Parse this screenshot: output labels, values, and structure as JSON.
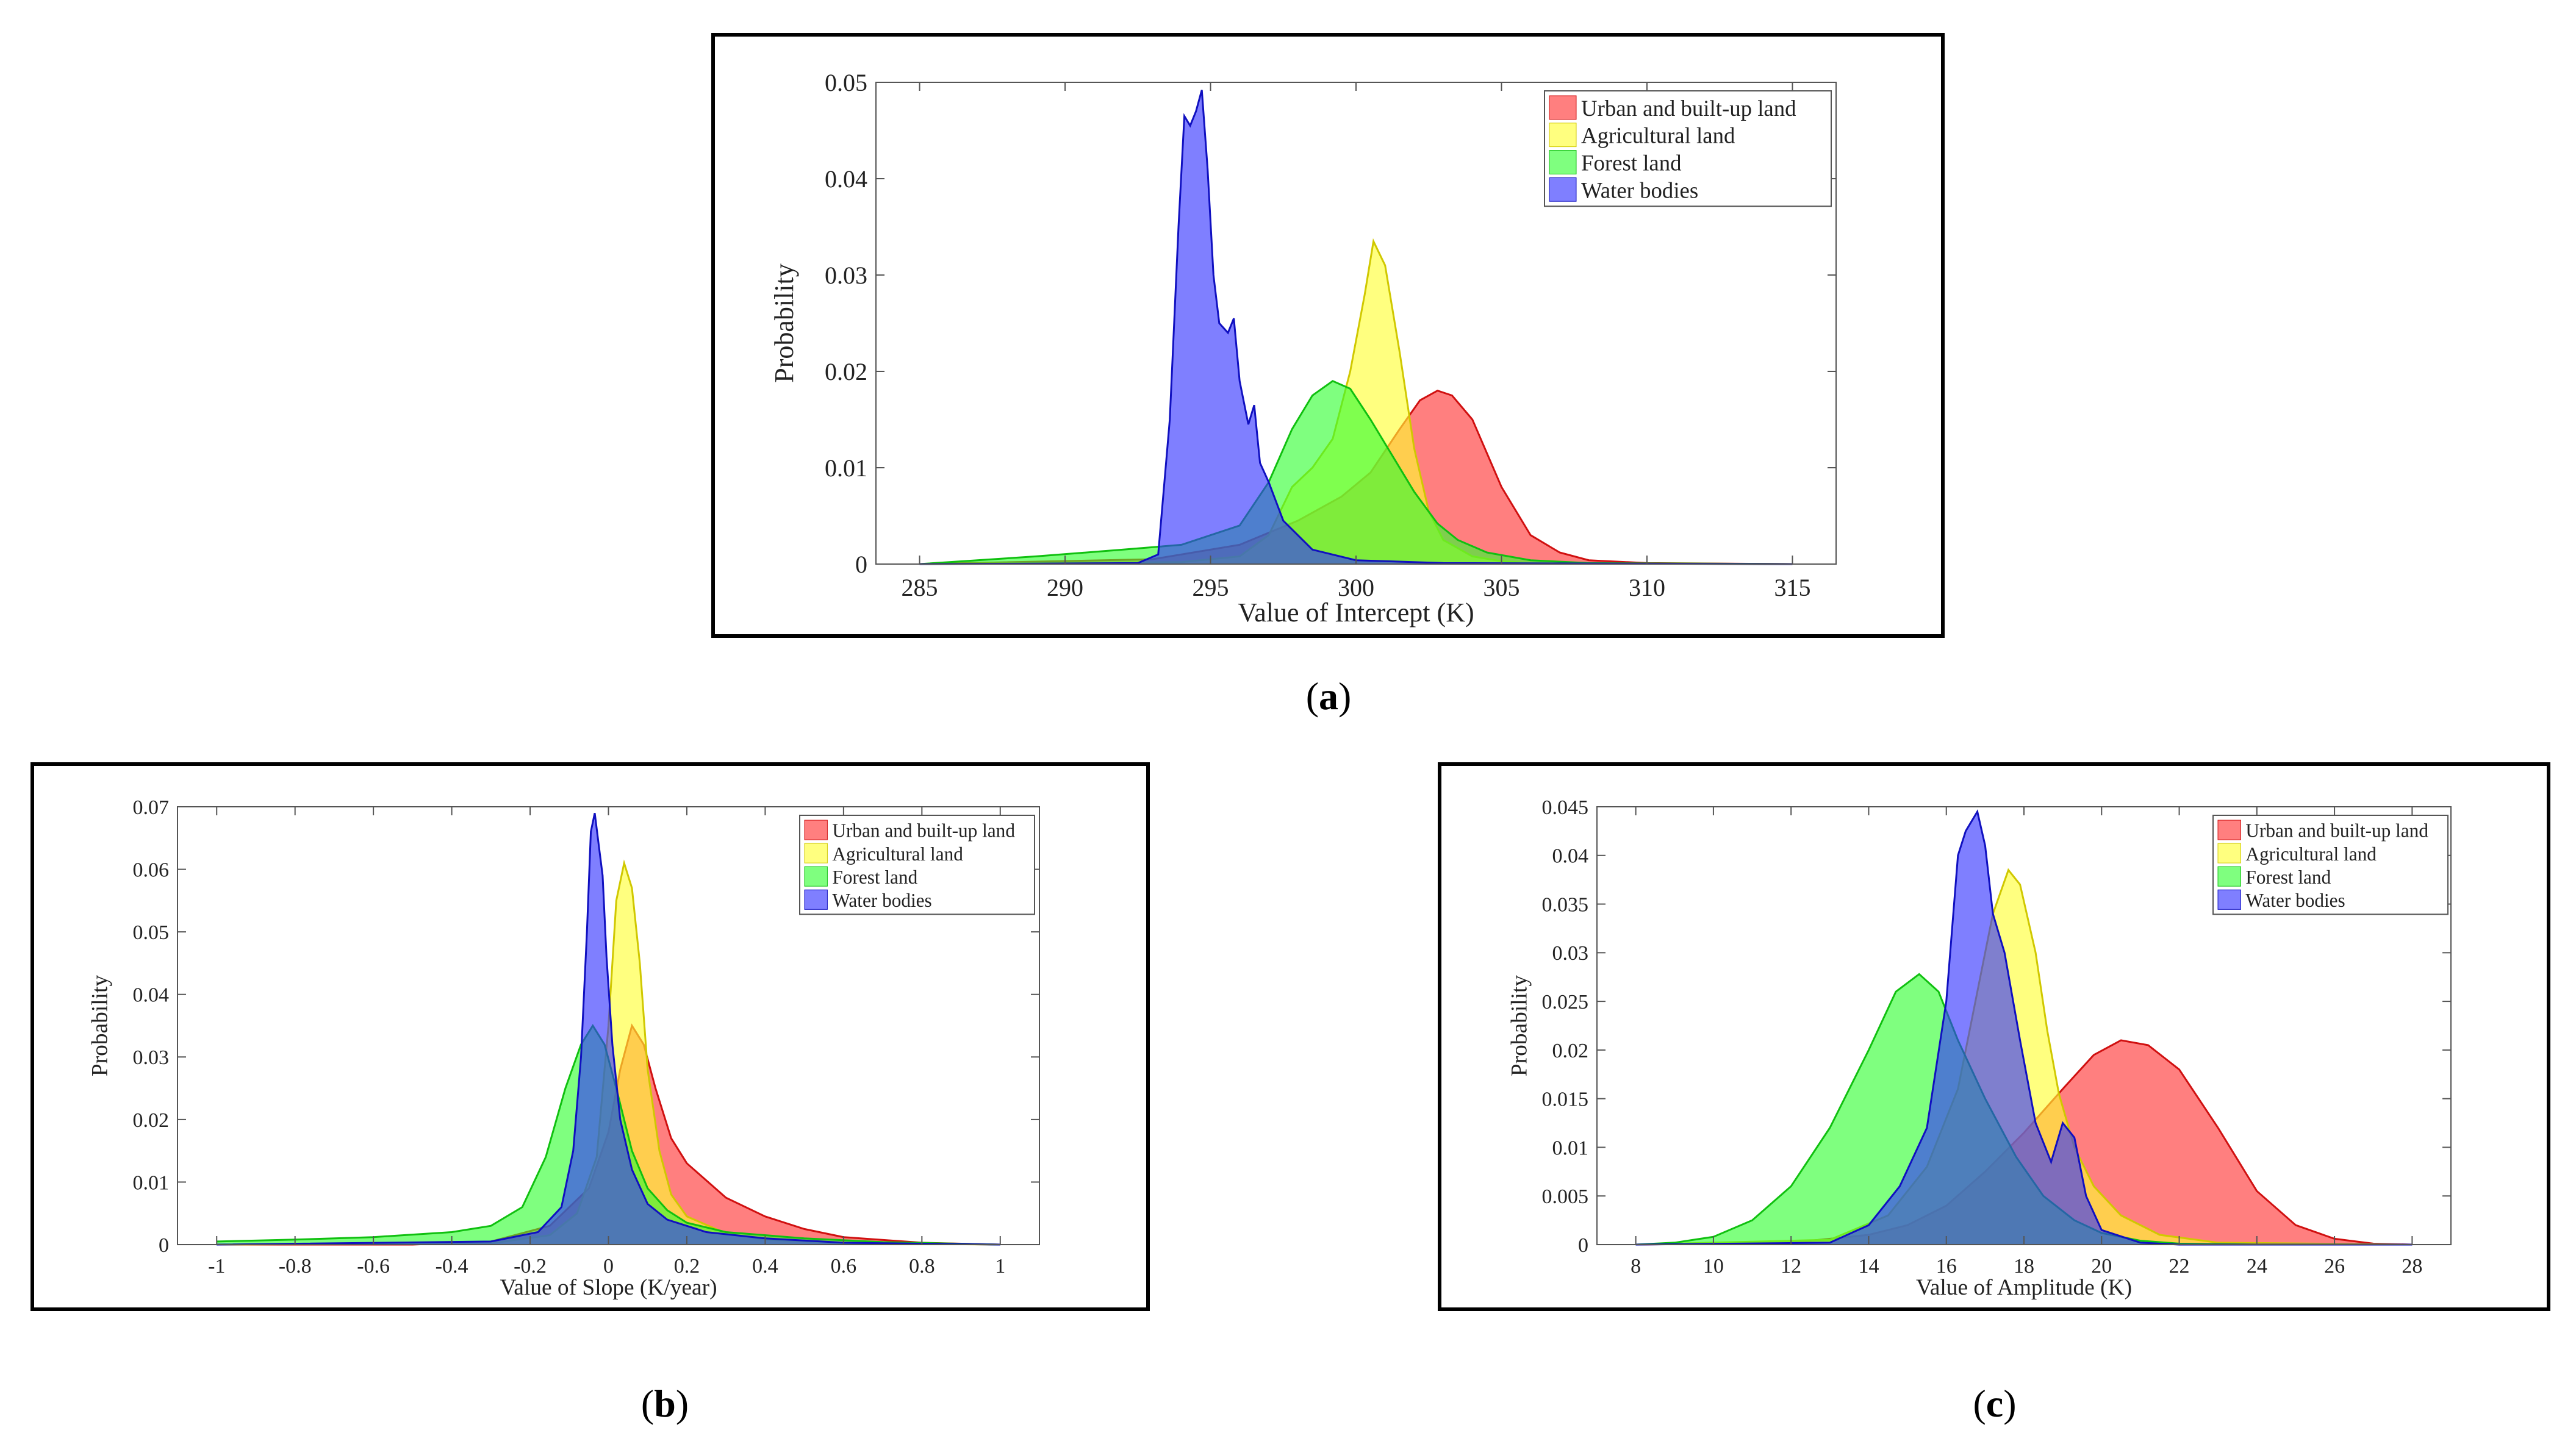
{
  "chart_data": [
    {
      "id": "a",
      "type": "area",
      "caption": "a",
      "xlabel": "Value of Intercept (K)",
      "ylabel": "Probability",
      "xlim": [
        283.5,
        316.5
      ],
      "ylim": [
        0,
        0.05
      ],
      "xticks": [
        285,
        290,
        295,
        300,
        305,
        310,
        315
      ],
      "yticks": [
        0,
        0.01,
        0.02,
        0.03,
        0.04,
        0.05
      ],
      "xtick_labels": [
        "285",
        "290",
        "295",
        "300",
        "305",
        "310",
        "315"
      ],
      "ytick_labels": [
        "0",
        "0.01",
        "0.02",
        "0.03",
        "0.04",
        "0.05"
      ],
      "legend": [
        "Urban and built-up land",
        "Agricultural land",
        "Forest land",
        "Water bodies"
      ],
      "series": [
        {
          "name": "Urban and built-up land",
          "color": "#ff3030",
          "stroke": "#d01010",
          "x": [
            285,
            293,
            296,
            298,
            299.5,
            300.5,
            301.5,
            302.2,
            302.8,
            303.3,
            304,
            305,
            306,
            307,
            308,
            310,
            315
          ],
          "y": [
            0,
            0.0005,
            0.002,
            0.0045,
            0.007,
            0.0095,
            0.014,
            0.017,
            0.018,
            0.0175,
            0.015,
            0.008,
            0.003,
            0.0012,
            0.0004,
            0.0001,
            0
          ]
        },
        {
          "name": "Agricultural land",
          "color": "#ffff30",
          "stroke": "#d0c800",
          "x": [
            285,
            294,
            296,
            297,
            297.8,
            298.5,
            299.2,
            299.8,
            300.3,
            300.6,
            301,
            301.5,
            302,
            302.5,
            303,
            304,
            305,
            306,
            315
          ],
          "y": [
            0,
            0.0002,
            0.0008,
            0.003,
            0.008,
            0.01,
            0.013,
            0.02,
            0.028,
            0.0335,
            0.031,
            0.022,
            0.012,
            0.0055,
            0.0025,
            0.0008,
            0.0003,
            0.0001,
            0
          ]
        },
        {
          "name": "Forest land",
          "color": "#30ff30",
          "stroke": "#10c010",
          "x": [
            285,
            289,
            292,
            294,
            296,
            297,
            297.8,
            298.5,
            299.2,
            299.8,
            300.5,
            301.2,
            302,
            302.8,
            303.5,
            304.5,
            306,
            308,
            315
          ],
          "y": [
            0,
            0.0008,
            0.0015,
            0.002,
            0.004,
            0.0085,
            0.014,
            0.0175,
            0.019,
            0.0182,
            0.015,
            0.0115,
            0.0075,
            0.0042,
            0.0025,
            0.0012,
            0.0004,
            0.0001,
            0
          ]
        },
        {
          "name": "Water bodies",
          "color": "#3030ff",
          "stroke": "#1010c0",
          "x": [
            285,
            292.5,
            293.2,
            293.6,
            293.9,
            294.1,
            294.3,
            294.5,
            294.7,
            294.9,
            295.1,
            295.3,
            295.6,
            295.8,
            296,
            296.3,
            296.5,
            296.7,
            297,
            297.5,
            298.5,
            300,
            303,
            315
          ],
          "y": [
            0,
            0.0001,
            0.001,
            0.015,
            0.035,
            0.0465,
            0.0455,
            0.047,
            0.0492,
            0.041,
            0.03,
            0.025,
            0.024,
            0.0255,
            0.019,
            0.0145,
            0.0165,
            0.0105,
            0.0085,
            0.0045,
            0.0015,
            0.0004,
            0.0001,
            0
          ]
        }
      ]
    },
    {
      "id": "b",
      "type": "area",
      "caption": "b",
      "xlabel": "Value of Slope (K/year)",
      "ylabel": "Probability",
      "xlim": [
        -1.1,
        1.1
      ],
      "ylim": [
        0,
        0.07
      ],
      "xticks": [
        -1,
        -0.8,
        -0.6,
        -0.4,
        -0.2,
        0,
        0.2,
        0.4,
        0.6,
        0.8,
        1
      ],
      "yticks": [
        0,
        0.01,
        0.02,
        0.03,
        0.04,
        0.05,
        0.06,
        0.07
      ],
      "xtick_labels": [
        "-1",
        "-0.8",
        "-0.6",
        "-0.4",
        "-0.2",
        "0",
        "0.2",
        "0.4",
        "0.6",
        "0.8",
        "1"
      ],
      "ytick_labels": [
        "0",
        "0.01",
        "0.02",
        "0.03",
        "0.04",
        "0.05",
        "0.06",
        "0.07"
      ],
      "legend": [
        "Urban and built-up land",
        "Agricultural land",
        "Forest land",
        "Water bodies"
      ],
      "series": [
        {
          "name": "Urban and built-up land",
          "color": "#ff3030",
          "stroke": "#d01010",
          "x": [
            -1,
            -0.5,
            -0.3,
            -0.15,
            -0.05,
            0,
            0.03,
            0.06,
            0.09,
            0.12,
            0.16,
            0.2,
            0.3,
            0.4,
            0.5,
            0.6,
            0.8,
            1
          ],
          "y": [
            0,
            0,
            0.0005,
            0.003,
            0.009,
            0.018,
            0.028,
            0.035,
            0.032,
            0.025,
            0.017,
            0.013,
            0.0075,
            0.0045,
            0.0025,
            0.0012,
            0.0003,
            0
          ]
        },
        {
          "name": "Agricultural land",
          "color": "#ffff30",
          "stroke": "#d0c800",
          "x": [
            -1,
            -0.3,
            -0.15,
            -0.08,
            -0.03,
            0,
            0.02,
            0.04,
            0.06,
            0.08,
            0.1,
            0.13,
            0.16,
            0.2,
            0.3,
            0.4,
            0.6,
            1
          ],
          "y": [
            0,
            0.0002,
            0.0015,
            0.005,
            0.014,
            0.035,
            0.055,
            0.061,
            0.057,
            0.045,
            0.028,
            0.015,
            0.008,
            0.0045,
            0.0018,
            0.0008,
            0.0002,
            0
          ]
        },
        {
          "name": "Forest land",
          "color": "#30ff30",
          "stroke": "#10c010",
          "x": [
            -1,
            -0.8,
            -0.6,
            -0.4,
            -0.3,
            -0.22,
            -0.16,
            -0.11,
            -0.07,
            -0.04,
            -0.01,
            0.02,
            0.06,
            0.1,
            0.15,
            0.2,
            0.3,
            0.5,
            0.7,
            1
          ],
          "y": [
            0.0005,
            0.0008,
            0.0012,
            0.002,
            0.003,
            0.006,
            0.014,
            0.025,
            0.032,
            0.035,
            0.032,
            0.025,
            0.015,
            0.009,
            0.0055,
            0.0035,
            0.002,
            0.001,
            0.0004,
            0
          ]
        },
        {
          "name": "Water bodies",
          "color": "#3030ff",
          "stroke": "#1010c0",
          "x": [
            -1,
            -0.3,
            -0.18,
            -0.12,
            -0.09,
            -0.07,
            -0.055,
            -0.045,
            -0.035,
            -0.025,
            -0.015,
            -0.005,
            0.01,
            0.03,
            0.06,
            0.1,
            0.15,
            0.25,
            0.4,
            0.6,
            1
          ],
          "y": [
            0,
            0.0005,
            0.002,
            0.006,
            0.015,
            0.03,
            0.05,
            0.066,
            0.069,
            0.064,
            0.059,
            0.046,
            0.032,
            0.02,
            0.012,
            0.0065,
            0.004,
            0.002,
            0.001,
            0.0003,
            0
          ]
        }
      ]
    },
    {
      "id": "c",
      "type": "area",
      "caption": "c",
      "xlabel": "Value of Amplitude (K)",
      "ylabel": "Probability",
      "xlim": [
        7,
        29
      ],
      "ylim": [
        0,
        0.045
      ],
      "xticks": [
        8,
        10,
        12,
        14,
        16,
        18,
        20,
        22,
        24,
        26,
        28
      ],
      "yticks": [
        0,
        0.005,
        0.01,
        0.015,
        0.02,
        0.025,
        0.03,
        0.035,
        0.04,
        0.045
      ],
      "xtick_labels": [
        "8",
        "10",
        "12",
        "14",
        "16",
        "18",
        "20",
        "22",
        "24",
        "26",
        "28"
      ],
      "ytick_labels": [
        "0",
        "0.005",
        "0.01",
        "0.015",
        "0.02",
        "0.025",
        "0.03",
        "0.035",
        "0.04",
        "0.045"
      ],
      "legend": [
        "Urban and built-up land",
        "Agricultural land",
        "Forest land",
        "Water bodies"
      ],
      "series": [
        {
          "name": "Urban and built-up land",
          "color": "#ff3030",
          "stroke": "#d01010",
          "x": [
            8,
            12,
            14,
            15,
            16,
            17,
            18,
            19,
            19.8,
            20.5,
            21.2,
            22,
            23,
            24,
            25,
            26,
            27,
            28
          ],
          "y": [
            0,
            0.0002,
            0.001,
            0.002,
            0.004,
            0.0075,
            0.0115,
            0.016,
            0.0195,
            0.021,
            0.0205,
            0.018,
            0.012,
            0.0055,
            0.002,
            0.0006,
            0.0001,
            0
          ]
        },
        {
          "name": "Agricultural land",
          "color": "#ffff30",
          "stroke": "#d0c800",
          "x": [
            8,
            13,
            14.5,
            15.5,
            16.3,
            16.8,
            17.2,
            17.6,
            17.9,
            18.3,
            18.6,
            18.9,
            19.3,
            19.8,
            20.5,
            21.5,
            23,
            28
          ],
          "y": [
            0,
            0.0005,
            0.003,
            0.008,
            0.016,
            0.026,
            0.034,
            0.0385,
            0.037,
            0.03,
            0.022,
            0.0155,
            0.01,
            0.006,
            0.003,
            0.001,
            0.0002,
            0
          ]
        },
        {
          "name": "Forest land",
          "color": "#30ff30",
          "stroke": "#10c010",
          "x": [
            8,
            9,
            10,
            11,
            12,
            13,
            14,
            14.7,
            15.3,
            15.8,
            16.3,
            17,
            17.8,
            18.5,
            19.3,
            20,
            21,
            22,
            24,
            28
          ],
          "y": [
            0,
            0.0002,
            0.0008,
            0.0025,
            0.006,
            0.012,
            0.02,
            0.026,
            0.0278,
            0.026,
            0.021,
            0.015,
            0.009,
            0.005,
            0.0025,
            0.0012,
            0.0004,
            0.0001,
            0,
            0
          ]
        },
        {
          "name": "Water bodies",
          "color": "#3030ff",
          "stroke": "#1010c0",
          "x": [
            8,
            13,
            14,
            14.8,
            15.5,
            16,
            16.3,
            16.5,
            16.8,
            17,
            17.2,
            17.5,
            17.9,
            18.3,
            18.7,
            19,
            19.3,
            19.6,
            20,
            21,
            22,
            28
          ],
          "y": [
            0,
            0.0002,
            0.002,
            0.006,
            0.012,
            0.025,
            0.04,
            0.0425,
            0.0445,
            0.041,
            0.034,
            0.03,
            0.021,
            0.0125,
            0.0085,
            0.0125,
            0.011,
            0.005,
            0.0015,
            0.0002,
            0,
            0
          ]
        }
      ]
    }
  ]
}
